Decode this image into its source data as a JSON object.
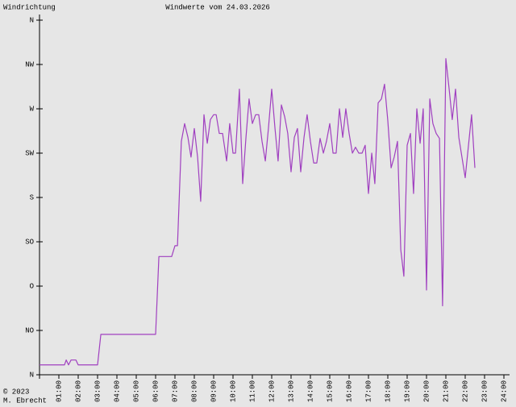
{
  "chart_data": {
    "type": "line",
    "title": "Windwerte vom 24.03.2026",
    "ylabel": "Windrichtung",
    "annotations": [
      "© 2023",
      "M. Ebrecht"
    ],
    "color": "#a040c0",
    "xlim": [
      0,
      24
    ],
    "ylim": [
      0,
      360
    ],
    "xticks": [
      {
        "value": 1,
        "label": "01:00"
      },
      {
        "value": 2,
        "label": "02:00"
      },
      {
        "value": 3,
        "label": "03:00"
      },
      {
        "value": 4,
        "label": "04:00"
      },
      {
        "value": 5,
        "label": "05:00"
      },
      {
        "value": 6,
        "label": "06:00"
      },
      {
        "value": 7,
        "label": "07:00"
      },
      {
        "value": 8,
        "label": "08:00"
      },
      {
        "value": 9,
        "label": "09:00"
      },
      {
        "value": 10,
        "label": "10:00"
      },
      {
        "value": 11,
        "label": "11:00"
      },
      {
        "value": 12,
        "label": "12:00"
      },
      {
        "value": 13,
        "label": "13:00"
      },
      {
        "value": 14,
        "label": "14:00"
      },
      {
        "value": 15,
        "label": "15:00"
      },
      {
        "value": 16,
        "label": "16:00"
      },
      {
        "value": 17,
        "label": "17:00"
      },
      {
        "value": 18,
        "label": "18:00"
      },
      {
        "value": 19,
        "label": "19:00"
      },
      {
        "value": 20,
        "label": "20:00"
      },
      {
        "value": 21,
        "label": "21:00"
      },
      {
        "value": 22,
        "label": "22:00"
      },
      {
        "value": 23,
        "label": "23:00"
      },
      {
        "value": 24,
        "label": "24:00"
      }
    ],
    "yticks": [
      {
        "value": 0,
        "label": "N"
      },
      {
        "value": 45,
        "label": "NO"
      },
      {
        "value": 90,
        "label": "O"
      },
      {
        "value": 135,
        "label": "SO"
      },
      {
        "value": 180,
        "label": "S"
      },
      {
        "value": 225,
        "label": "SW"
      },
      {
        "value": 270,
        "label": "W"
      },
      {
        "value": 315,
        "label": "NW"
      },
      {
        "value": 360,
        "label": "N"
      }
    ],
    "x": [
      0,
      1.29,
      1.38,
      1.5,
      1.63,
      1.88,
      2.0,
      3.0,
      3.17,
      6.0,
      6.17,
      6.83,
      7.0,
      7.13,
      7.33,
      7.5,
      7.67,
      7.83,
      8.0,
      8.17,
      8.33,
      8.5,
      8.67,
      8.83,
      9.0,
      9.13,
      9.29,
      9.46,
      9.67,
      9.83,
      10.0,
      10.13,
      10.33,
      10.5,
      10.67,
      10.83,
      11.0,
      11.17,
      11.33,
      11.5,
      11.67,
      11.83,
      12.0,
      12.17,
      12.33,
      12.5,
      12.67,
      12.83,
      13.0,
      13.17,
      13.33,
      13.5,
      13.67,
      13.83,
      14.0,
      14.17,
      14.33,
      14.5,
      14.67,
      14.83,
      15.0,
      15.17,
      15.33,
      15.5,
      15.67,
      15.83,
      16.0,
      16.17,
      16.33,
      16.5,
      16.67,
      16.83,
      17.0,
      17.17,
      17.33,
      17.5,
      17.67,
      17.83,
      18.0,
      18.17,
      18.33,
      18.5,
      18.67,
      18.83,
      19.0,
      19.17,
      19.33,
      19.5,
      19.67,
      19.83,
      20.0,
      20.17,
      20.33,
      20.5,
      20.67,
      20.83,
      21.0,
      21.17,
      21.33,
      21.5,
      21.67,
      22.0,
      22.17,
      22.33,
      22.5
    ],
    "values": [
      10,
      10,
      15,
      10,
      15,
      15,
      10,
      10,
      41,
      41,
      120,
      120,
      131,
      131,
      237,
      255,
      241,
      221,
      250,
      221,
      176,
      264,
      235,
      259,
      264,
      264,
      245,
      245,
      217,
      255,
      225,
      225,
      290,
      194,
      241,
      280,
      255,
      264,
      264,
      237,
      217,
      250,
      290,
      250,
      217,
      274,
      262,
      245,
      206,
      241,
      250,
      206,
      241,
      264,
      237,
      215,
      215,
      240,
      225,
      237,
      255,
      225,
      225,
      270,
      241,
      270,
      245,
      225,
      231,
      225,
      225,
      233,
      184,
      225,
      194,
      276,
      280,
      295,
      258,
      210,
      221,
      237,
      127,
      100,
      233,
      245,
      184,
      270,
      235,
      270,
      86,
      280,
      255,
      245,
      240,
      70,
      321,
      290,
      259,
      290,
      241,
      200,
      233,
      264,
      210
    ]
  }
}
